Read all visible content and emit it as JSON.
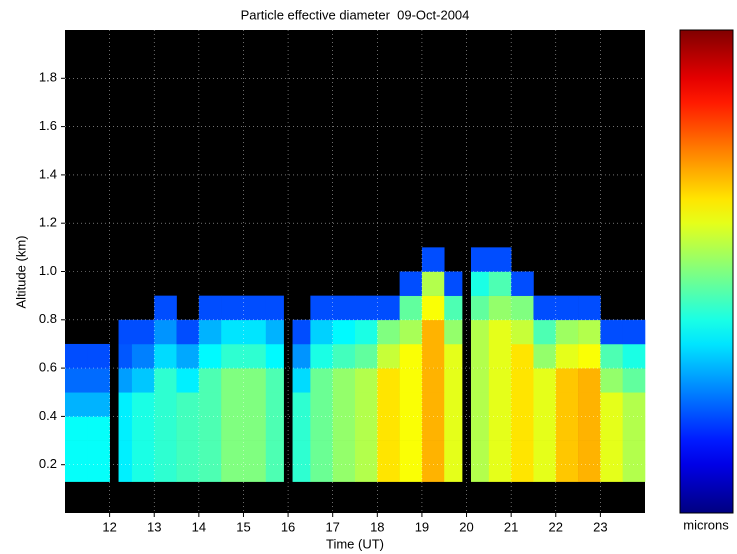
{
  "chart_data": {
    "type": "heatmap",
    "title": "Particle effective diameter  09-Oct-2004",
    "x_label": "Time (UT)",
    "y_label": "Altitude (km)",
    "colorbar_label": "microns",
    "xlim": [
      11,
      24
    ],
    "ylim": [
      0,
      2
    ],
    "xticks": [
      12,
      13,
      14,
      15,
      16,
      17,
      18,
      19,
      20,
      21,
      22,
      23
    ],
    "yticks": [
      0.2,
      0.4,
      0.6,
      0.8,
      {
        "value": 1,
        "label": "1.0"
      },
      1.2,
      1.4,
      1.6,
      1.8
    ],
    "grid": true,
    "colormap": "jet",
    "zlim": [
      0,
      1
    ],
    "xbins": [
      11,
      11.5,
      12,
      12.2,
      12.5,
      13,
      13.5,
      14,
      14.5,
      15,
      15.5,
      15.9,
      16.1,
      16.5,
      17,
      17.5,
      18,
      18.5,
      19,
      19.5,
      19.9,
      20.1,
      20.5,
      21,
      21.5,
      22,
      22.5,
      23,
      23.5,
      24
    ],
    "ybins": [
      0.13,
      0.2,
      0.3,
      0.4,
      0.5,
      0.6,
      0.7,
      0.8,
      0.9,
      1.0,
      1.1
    ],
    "values": [
      [
        0.38,
        0.38,
        null,
        0.36,
        0.4,
        0.42,
        0.44,
        0.45,
        0.5,
        0.5,
        0.45,
        null,
        0.42,
        0.48,
        0.52,
        0.55,
        0.65,
        0.62,
        0.7,
        0.6,
        null,
        0.55,
        0.6,
        0.65,
        0.6,
        0.68,
        0.7,
        0.6,
        0.55
      ],
      [
        0.38,
        0.38,
        null,
        0.36,
        0.4,
        0.42,
        0.44,
        0.45,
        0.5,
        0.5,
        0.45,
        null,
        0.42,
        0.48,
        0.52,
        0.55,
        0.65,
        0.62,
        0.7,
        0.6,
        null,
        0.55,
        0.6,
        0.65,
        0.6,
        0.68,
        0.7,
        0.6,
        0.55
      ],
      [
        0.38,
        0.38,
        null,
        0.36,
        0.4,
        0.42,
        0.44,
        0.45,
        0.5,
        0.5,
        0.45,
        null,
        0.42,
        0.48,
        0.52,
        0.55,
        0.65,
        0.62,
        0.7,
        0.6,
        null,
        0.55,
        0.6,
        0.65,
        0.6,
        0.68,
        0.7,
        0.6,
        0.55
      ],
      [
        0.3,
        0.3,
        null,
        0.36,
        0.4,
        0.42,
        0.44,
        0.45,
        0.5,
        0.5,
        0.45,
        null,
        0.42,
        0.48,
        0.52,
        0.55,
        0.65,
        0.62,
        0.7,
        0.6,
        null,
        0.55,
        0.6,
        0.65,
        0.6,
        0.68,
        0.7,
        0.6,
        0.55
      ],
      [
        0.23,
        0.23,
        null,
        0.28,
        0.32,
        0.42,
        0.36,
        0.45,
        0.5,
        0.5,
        0.45,
        null,
        0.34,
        0.48,
        0.52,
        0.55,
        0.65,
        0.62,
        0.7,
        0.6,
        null,
        0.55,
        0.6,
        0.65,
        0.6,
        0.68,
        0.7,
        0.52,
        0.47
      ],
      [
        0.2,
        0.2,
        null,
        0.21,
        0.25,
        0.34,
        0.29,
        0.37,
        0.42,
        0.42,
        0.37,
        null,
        0.27,
        0.4,
        0.44,
        0.47,
        0.57,
        0.62,
        0.7,
        0.6,
        null,
        0.55,
        0.6,
        0.65,
        0.52,
        0.6,
        0.62,
        0.45,
        0.4
      ],
      [
        null,
        null,
        null,
        0.2,
        0.2,
        0.27,
        0.2,
        0.3,
        0.35,
        0.35,
        0.3,
        null,
        0.2,
        0.33,
        0.37,
        0.4,
        0.5,
        0.54,
        0.7,
        0.52,
        null,
        0.55,
        0.6,
        0.57,
        0.45,
        0.53,
        0.55,
        0.2,
        0.2
      ],
      [
        null,
        null,
        null,
        null,
        null,
        0.2,
        null,
        0.2,
        0.2,
        0.2,
        0.2,
        null,
        null,
        0.2,
        0.2,
        0.2,
        0.2,
        0.47,
        0.62,
        0.45,
        null,
        0.47,
        0.52,
        0.5,
        0.2,
        0.2,
        0.2,
        null,
        null
      ],
      [
        null,
        null,
        null,
        null,
        null,
        null,
        null,
        null,
        null,
        null,
        null,
        null,
        null,
        null,
        null,
        null,
        null,
        0.2,
        0.55,
        0.2,
        null,
        0.4,
        0.45,
        0.2,
        null,
        null,
        null,
        null,
        null
      ],
      [
        null,
        null,
        null,
        null,
        null,
        null,
        null,
        null,
        null,
        null,
        null,
        null,
        null,
        null,
        null,
        null,
        null,
        null,
        0.2,
        null,
        null,
        0.2,
        0.2,
        null,
        null,
        null,
        null,
        null,
        null
      ]
    ]
  }
}
